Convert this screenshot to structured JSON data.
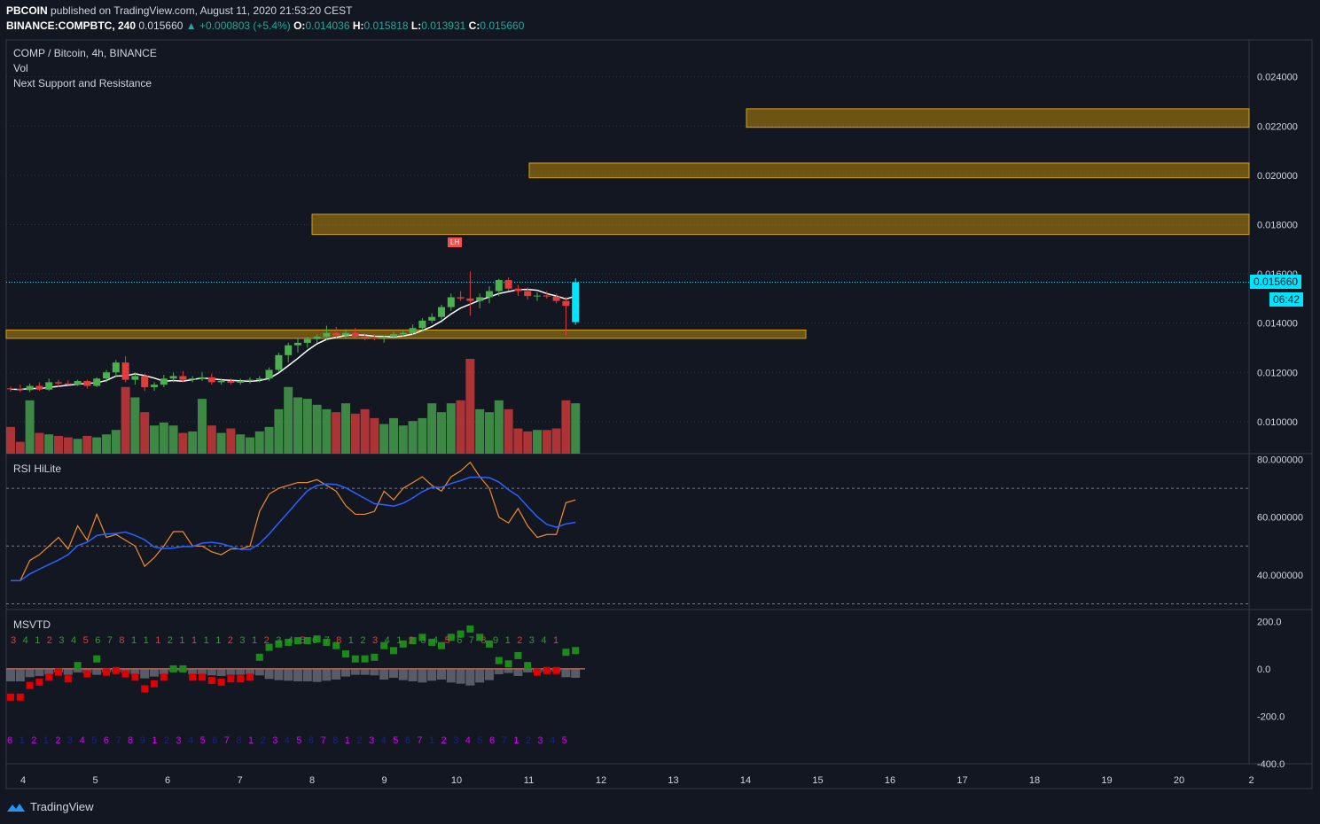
{
  "header": {
    "author": "PBCOIN",
    "published": "published on TradingView.com, August 11, 2020 21:53:20 CEST",
    "symbol": "BINANCE:COMPBTC, 240",
    "last": "0.015660",
    "change": "+0.000803 (+5.4%)",
    "o_label": "O:",
    "o": "0.014036",
    "h_label": "H:",
    "h": "0.015818",
    "l_label": "L:",
    "l": "0.013931",
    "c_label": "C:",
    "c": "0.015660"
  },
  "main_pane": {
    "title": "COMP / Bitcoin, 4h, BINANCE",
    "indicator1": "Vol",
    "indicator2": "Next Support and Resistance",
    "price_badge": "0.015660",
    "countdown_badge": "06:42",
    "marker_label": "LH"
  },
  "rsi_pane": {
    "title": "RSI HiLite"
  },
  "msvtd_pane": {
    "title": "MSVTD"
  },
  "footer": {
    "brand": "TradingView"
  },
  "colors": {
    "bg": "#131722",
    "up": "#4caf50",
    "down": "#e03d3d",
    "zone": "#b8860b",
    "accent": "#00e5ff"
  },
  "chart_data": [
    {
      "type": "candlestick",
      "title": "COMP / Bitcoin, 4h, BINANCE",
      "x_ticks": [
        "4",
        "5",
        "6",
        "7",
        "8",
        "9",
        "10",
        "11",
        "12",
        "13",
        "14",
        "15",
        "16",
        "17",
        "18",
        "19",
        "20",
        "2"
      ],
      "y_ticks": [
        "0.024000",
        "0.022000",
        "0.020000",
        "0.018000",
        "0.016000",
        "0.014000",
        "0.012000",
        "0.010000"
      ],
      "ylim": [
        0.0087,
        0.0255
      ],
      "grid": "dotted",
      "last_price": 0.01566,
      "candles_ohlc": [
        [
          0.01135,
          0.01142,
          0.01122,
          0.01132
        ],
        [
          0.01132,
          0.0115,
          0.0112,
          0.01128
        ],
        [
          0.01128,
          0.01155,
          0.0112,
          0.01145
        ],
        [
          0.01145,
          0.0116,
          0.01125,
          0.0113
        ],
        [
          0.0113,
          0.01175,
          0.01125,
          0.0116
        ],
        [
          0.0116,
          0.0117,
          0.0114,
          0.01155
        ],
        [
          0.01155,
          0.01168,
          0.01148,
          0.0115
        ],
        [
          0.0115,
          0.0117,
          0.01145,
          0.01165
        ],
        [
          0.01165,
          0.0117,
          0.01135,
          0.01145
        ],
        [
          0.01145,
          0.0118,
          0.0114,
          0.01175
        ],
        [
          0.01175,
          0.0121,
          0.0116,
          0.012
        ],
        [
          0.012,
          0.0125,
          0.0118,
          0.0124
        ],
        [
          0.0124,
          0.01265,
          0.0116,
          0.0117
        ],
        [
          0.0117,
          0.012,
          0.0115,
          0.01185
        ],
        [
          0.01185,
          0.01195,
          0.01125,
          0.0114
        ],
        [
          0.0114,
          0.0116,
          0.01125,
          0.0115
        ],
        [
          0.0115,
          0.0119,
          0.0114,
          0.01175
        ],
        [
          0.01175,
          0.012,
          0.0116,
          0.01185
        ],
        [
          0.01185,
          0.01205,
          0.0116,
          0.0117
        ],
        [
          0.0117,
          0.01185,
          0.0116,
          0.01175
        ],
        [
          0.01175,
          0.012,
          0.01165,
          0.0118
        ],
        [
          0.0118,
          0.01195,
          0.0115,
          0.0116
        ],
        [
          0.0116,
          0.01175,
          0.0115,
          0.01165
        ],
        [
          0.01165,
          0.01175,
          0.0115,
          0.01158
        ],
        [
          0.01158,
          0.01175,
          0.0115,
          0.01165
        ],
        [
          0.01165,
          0.0118,
          0.01155,
          0.0117
        ],
        [
          0.0117,
          0.01185,
          0.0116,
          0.01175
        ],
        [
          0.01175,
          0.0122,
          0.01165,
          0.0121
        ],
        [
          0.0121,
          0.0128,
          0.012,
          0.0127
        ],
        [
          0.0127,
          0.0132,
          0.0124,
          0.0131
        ],
        [
          0.0131,
          0.0134,
          0.0128,
          0.0132
        ],
        [
          0.0132,
          0.01345,
          0.013,
          0.01335
        ],
        [
          0.01335,
          0.01355,
          0.0132,
          0.01345
        ],
        [
          0.01345,
          0.0139,
          0.0133,
          0.0136
        ],
        [
          0.0136,
          0.01385,
          0.0134,
          0.0135
        ],
        [
          0.0135,
          0.01375,
          0.01335,
          0.0136
        ],
        [
          0.0136,
          0.0138,
          0.0134,
          0.01345
        ],
        [
          0.01345,
          0.0136,
          0.0133,
          0.0134
        ],
        [
          0.0134,
          0.01355,
          0.0133,
          0.01338
        ],
        [
          0.01338,
          0.0135,
          0.0132,
          0.01345
        ],
        [
          0.01345,
          0.01365,
          0.01335,
          0.01355
        ],
        [
          0.01355,
          0.01375,
          0.01345,
          0.0136
        ],
        [
          0.0136,
          0.01395,
          0.0135,
          0.0138
        ],
        [
          0.0138,
          0.0142,
          0.0137,
          0.0141
        ],
        [
          0.0141,
          0.0144,
          0.014,
          0.01425
        ],
        [
          0.01425,
          0.01475,
          0.01415,
          0.01465
        ],
        [
          0.01465,
          0.0152,
          0.0145,
          0.01505
        ],
        [
          0.01505,
          0.0153,
          0.0149,
          0.015
        ],
        [
          0.015,
          0.0161,
          0.0143,
          0.0149
        ],
        [
          0.0149,
          0.0152,
          0.0146,
          0.01505
        ],
        [
          0.01505,
          0.0155,
          0.0148,
          0.0153
        ],
        [
          0.0153,
          0.0158,
          0.0151,
          0.01575
        ],
        [
          0.01575,
          0.01585,
          0.0153,
          0.0154
        ],
        [
          0.0154,
          0.01555,
          0.0151,
          0.0153
        ],
        [
          0.0153,
          0.01545,
          0.01495,
          0.0151
        ],
        [
          0.0151,
          0.01525,
          0.0149,
          0.01512
        ],
        [
          0.01512,
          0.0153,
          0.015,
          0.01508
        ],
        [
          0.01508,
          0.0152,
          0.0148,
          0.0149
        ],
        [
          0.0149,
          0.01505,
          0.0135,
          0.0147
        ],
        [
          0.01404,
          0.01582,
          0.01393,
          0.01566
        ]
      ],
      "volume": [
        18,
        8,
        36,
        14,
        13,
        12,
        11,
        10,
        12,
        11,
        13,
        16,
        45,
        38,
        28,
        19,
        21,
        19,
        14,
        15,
        37,
        19,
        14,
        17,
        13,
        11,
        15,
        18,
        30,
        45,
        38,
        37,
        33,
        30,
        28,
        34,
        27,
        30,
        24,
        20,
        24,
        19,
        22,
        24,
        34,
        28,
        34,
        36,
        64,
        30,
        28,
        36,
        30,
        17,
        15,
        16,
        16,
        17,
        36,
        34
      ],
      "zones": [
        {
          "top": 0.0227,
          "bottom": 0.02195
        },
        {
          "top": 0.0205,
          "bottom": 0.0199
        },
        {
          "top": 0.01842,
          "bottom": 0.0176
        },
        {
          "top": 0.01372,
          "bottom": 0.01338
        }
      ]
    },
    {
      "type": "line",
      "title": "RSI HiLite",
      "y_ticks": [
        "80.000000",
        "60.000000",
        "40.000000"
      ],
      "ylim": [
        28,
        82
      ],
      "levels": [
        70,
        50,
        30
      ],
      "rsi": [
        38,
        38,
        45,
        47,
        50,
        53,
        49,
        57,
        52,
        61,
        53,
        54,
        52,
        50,
        43,
        46,
        50,
        55,
        55,
        50,
        50,
        48,
        47,
        49,
        49,
        50,
        62,
        68,
        70,
        71,
        72,
        72,
        73,
        71,
        69,
        64,
        61,
        61,
        62,
        69,
        66,
        70,
        72,
        74,
        71,
        69,
        74,
        76,
        79,
        74,
        70,
        60,
        58,
        63,
        57,
        53,
        54,
        54,
        65,
        66
      ]
    },
    {
      "type": "bar",
      "title": "MSVTD",
      "y_ticks": [
        "200.0",
        "0.0",
        "-200.0",
        "-400.0"
      ],
      "ylim": [
        -400,
        250
      ],
      "td_top": [
        "3",
        "4",
        "1",
        "2",
        "3",
        "4",
        "5",
        "6",
        "7",
        "8",
        "1",
        "1",
        "1",
        "2",
        "1",
        "1",
        "1",
        "1",
        "2",
        "3",
        "1",
        "2",
        "3",
        "4",
        "5",
        "6",
        "7",
        "8",
        "1",
        "2",
        "3",
        "4",
        "1",
        "2",
        "3",
        "4",
        "5",
        "6",
        "7",
        "8",
        "9",
        "1",
        "2",
        "3",
        "4",
        "1"
      ],
      "td_bottom": [
        "6",
        "1",
        "2",
        "1",
        "2",
        "3",
        "4",
        "5",
        "6",
        "7",
        "8",
        "9",
        "1",
        "2",
        "3",
        "4",
        "5",
        "6",
        "7",
        "8",
        "1",
        "2",
        "3",
        "4",
        "5",
        "6",
        "7",
        "8",
        "1",
        "2",
        "3",
        "4",
        "5",
        "6",
        "7",
        "1",
        "2",
        "3",
        "4",
        "5",
        "6",
        "7",
        "1",
        "2",
        "3",
        "4",
        "5"
      ]
    }
  ]
}
